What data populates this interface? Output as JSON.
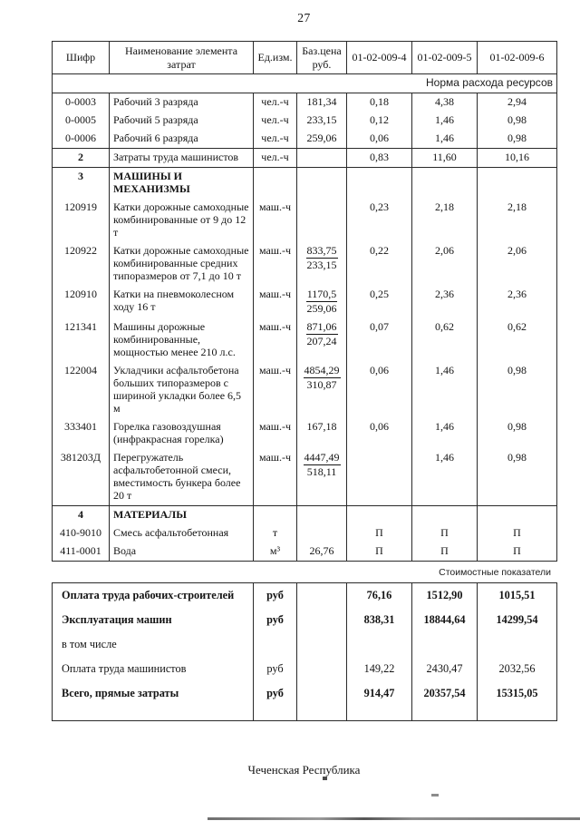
{
  "page": {
    "number": "27",
    "footer": "Чеченская Республика"
  },
  "table": {
    "columns": [
      "Шифр",
      "Наименование элемента затрат",
      "Ед.изм.",
      "Баз.цена руб.",
      "01-02-009-4",
      "01-02-009-5",
      "01-02-009-6"
    ],
    "norm_band": "Норма расхода ресурсов",
    "cost_band": "Стоимостные показатели",
    "rows": [
      {
        "code": "0-0003",
        "name": "Рабочий 3 разряда",
        "unit": "чел.-ч",
        "price": "181,34",
        "v": [
          "0,18",
          "4,38",
          "2,94"
        ]
      },
      {
        "code": "0-0005",
        "name": "Рабочий 5 разряда",
        "unit": "чел.-ч",
        "price": "233,15",
        "v": [
          "0,12",
          "1,46",
          "0,98"
        ]
      },
      {
        "code": "0-0006",
        "name": "Рабочий 6 разряда",
        "unit": "чел.-ч",
        "price": "259,06",
        "v": [
          "0,06",
          "1,46",
          "0,98"
        ]
      },
      {
        "code": "2",
        "name": "Затраты труда машинистов",
        "unit": "чел.-ч",
        "price": "",
        "v": [
          "0,83",
          "11,60",
          "10,16"
        ],
        "code_bold": true,
        "sep": true,
        "pad": true
      },
      {
        "code": "3",
        "name": "МАШИНЫ И МЕХАНИЗМЫ",
        "unit": "",
        "price": "",
        "v": [
          "",
          "",
          ""
        ],
        "section": true,
        "sep": true
      },
      {
        "code": "120919",
        "name": "Катки дорожные самоходные комбинированные от 9 до 12 т",
        "unit": "маш.-ч",
        "price": "",
        "v": [
          "0,23",
          "2,18",
          "2,18"
        ]
      },
      {
        "code": "120922",
        "name": "Катки дорожные самоходные комбинированные средних типоразмеров от 7,1 до 10 т",
        "unit": "маш.-ч",
        "price_num": "833,75",
        "price_den": "233,15",
        "v": [
          "0,22",
          "2,06",
          "2,06"
        ]
      },
      {
        "code": "120910",
        "name": "Катки на пневмоколесном ходу 16 т",
        "unit": "маш.-ч",
        "price_num": "1170,5",
        "price_den": "259,06",
        "v": [
          "0,25",
          "2,36",
          "2,36"
        ]
      },
      {
        "code": "121341",
        "name": "Машины дорожные комбинированные, мощностью менее 210 л.с.",
        "unit": "маш.-ч",
        "price_num": "871,06",
        "price_den": "207,24",
        "v": [
          "0,07",
          "0,62",
          "0,62"
        ]
      },
      {
        "code": "122004",
        "name": "Укладчики асфальтобетона больших типоразмеров с шириной укладки более 6,5 м",
        "unit": "маш.-ч",
        "price_num": "4854,29",
        "price_den": "310,87",
        "v": [
          "0,06",
          "1,46",
          "0,98"
        ]
      },
      {
        "code": "333401",
        "name": "Горелка газовоздушная (инфракрасная горелка)",
        "unit": "маш.-ч",
        "price": "167,18",
        "v": [
          "0,06",
          "1,46",
          "0,98"
        ]
      },
      {
        "code": "381203Д",
        "name": "Перегружатель асфальтобетонной смеси, вместимость бункера более 20 т",
        "unit": "маш.-ч",
        "price_num": "4447,49",
        "price_den": "518,11",
        "v": [
          "",
          "1,46",
          "0,98"
        ]
      },
      {
        "code": "4",
        "name": "МАТЕРИАЛЫ",
        "unit": "",
        "price": "",
        "v": [
          "",
          "",
          ""
        ],
        "section": true,
        "sep": true
      },
      {
        "code": "410-9010",
        "name": "Смесь асфальтобетонная",
        "unit": "т",
        "price": "",
        "v": [
          "П",
          "П",
          "П"
        ]
      },
      {
        "code": "411-0001",
        "name": "Вода",
        "unit": "м³",
        "price": "26,76",
        "v": [
          "П",
          "П",
          "П"
        ]
      }
    ],
    "cost_rows": [
      {
        "label": "Оплата труда рабочих-строителей",
        "unit": "руб",
        "v": [
          "76,16",
          "1512,90",
          "1015,51"
        ],
        "bold": true
      },
      {
        "label": "Эксплуатация машин",
        "unit": "руб",
        "v": [
          "838,31",
          "18844,64",
          "14299,54"
        ],
        "bold": true
      },
      {
        "label": "в том числе",
        "unit": "",
        "v": [
          "",
          "",
          ""
        ],
        "bold": false
      },
      {
        "label": "Оплата труда машинистов",
        "unit": "руб",
        "v": [
          "149,22",
          "2430,47",
          "2032,56"
        ],
        "bold": false
      },
      {
        "label": "Всего, прямые затраты",
        "unit": "руб",
        "v": [
          "914,47",
          "20357,54",
          "15315,05"
        ],
        "bold": true,
        "last": true
      }
    ]
  }
}
